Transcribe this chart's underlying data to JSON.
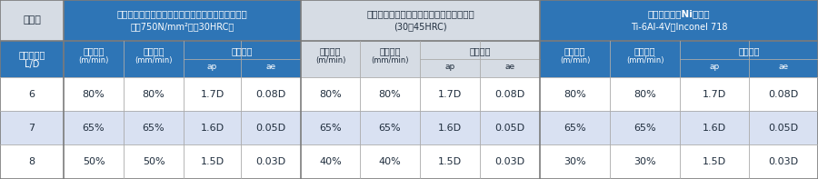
{
  "fig_width": 9.0,
  "fig_height": 1.97,
  "dpi": 100,
  "colors": {
    "blue_header": "#2E75B6",
    "blue_header2": "#4472C4",
    "gray_header": "#D6DCE4",
    "white": "#FFFFFF",
    "row_alt": "#D9E1F2",
    "border_dark": "#7B7B7B",
    "border_light": "#AAAAAA",
    "text_dark": "#1F2D3D",
    "text_white": "#FFFFFF"
  },
  "col1_header": "被削材",
  "group1_line1": "一般構造用鉰・炭素鉰・鑄鉄・合金鉰・合金工具鉰",
  "group1_line2": "（～750N/mm²、～30HRC）",
  "group2_line1": "プリハードン鉰・焼入れ鉰・ステンレス鉰",
  "group2_line2": "(30～45HRC)",
  "group3_line1": "チタン合金・Ni基合金",
  "group3_line2": "Ti-6Al-4V・Inconel 718",
  "sub_col1": "突出し長さ",
  "sub_col1b": "L/D",
  "sub_vc": "切削速度",
  "sub_vc_unit": "(m/min)",
  "sub_vf": "送り速度",
  "sub_vf_unit": "(mm/min)",
  "sub_cut": "切込深さ",
  "sub_ap": "ap",
  "sub_ae": "ae",
  "rows": [
    {
      "ld": "6",
      "g1_vc": "80%",
      "g1_vf": "80%",
      "g1_ap": "1.7D",
      "g1_ae": "0.08D",
      "g2_vc": "80%",
      "g2_vf": "80%",
      "g2_ap": "1.7D",
      "g2_ae": "0.08D",
      "g3_vc": "80%",
      "g3_vf": "80%",
      "g3_ap": "1.7D",
      "g3_ae": "0.08D"
    },
    {
      "ld": "7",
      "g1_vc": "65%",
      "g1_vf": "65%",
      "g1_ap": "1.6D",
      "g1_ae": "0.05D",
      "g2_vc": "65%",
      "g2_vf": "65%",
      "g2_ap": "1.6D",
      "g2_ae": "0.05D",
      "g3_vc": "65%",
      "g3_vf": "65%",
      "g3_ap": "1.6D",
      "g3_ae": "0.05D"
    },
    {
      "ld": "8",
      "g1_vc": "50%",
      "g1_vf": "50%",
      "g1_ap": "1.5D",
      "g1_ae": "0.03D",
      "g2_vc": "40%",
      "g2_vf": "40%",
      "g2_ap": "1.5D",
      "g2_ae": "0.03D",
      "g3_vc": "30%",
      "g3_vf": "30%",
      "g3_ap": "1.5D",
      "g3_ae": "0.03D"
    }
  ]
}
